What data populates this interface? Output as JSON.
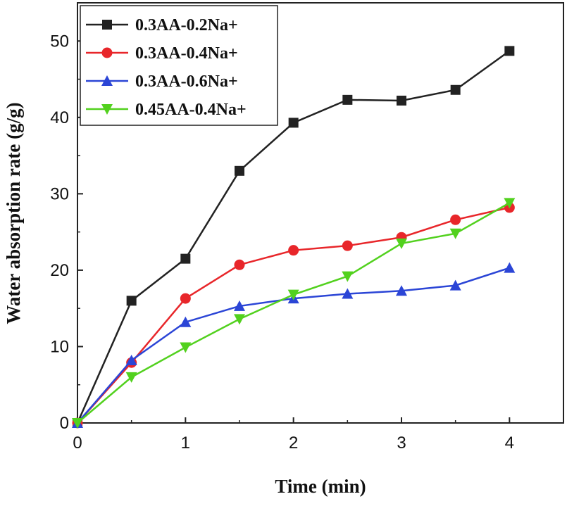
{
  "chart_data": {
    "type": "line",
    "xlabel": "Time (min)",
    "ylabel": "Water absorption rate (g/g)",
    "xlim": [
      0,
      4.5
    ],
    "ylim": [
      0,
      55
    ],
    "xticks": [
      0,
      1,
      2,
      3,
      4
    ],
    "yticks": [
      0,
      10,
      20,
      30,
      40,
      50
    ],
    "x": [
      0,
      0.5,
      1,
      1.5,
      2,
      2.5,
      3,
      3.5,
      4
    ],
    "legend_position": "top-left",
    "series": [
      {
        "name": "0.3AA-0.2Na+",
        "color": "#222222",
        "marker": "square",
        "values": [
          0,
          16.0,
          21.5,
          33.0,
          39.3,
          42.3,
          42.2,
          43.6,
          48.7
        ]
      },
      {
        "name": "0.3AA-0.4Na+",
        "color": "#e8262a",
        "marker": "circle",
        "values": [
          0,
          7.9,
          16.3,
          20.7,
          22.6,
          23.2,
          24.3,
          26.6,
          28.2
        ]
      },
      {
        "name": "0.3AA-0.6Na+",
        "color": "#2b45d6",
        "marker": "triangle-up",
        "values": [
          0,
          8.2,
          13.2,
          15.3,
          16.3,
          16.9,
          17.3,
          18.0,
          20.3
        ]
      },
      {
        "name": "0.45AA-0.4Na+",
        "color": "#52d11e",
        "marker": "triangle-down",
        "values": [
          0,
          6.0,
          9.9,
          13.6,
          16.8,
          19.2,
          23.5,
          24.8,
          28.8
        ]
      }
    ]
  }
}
